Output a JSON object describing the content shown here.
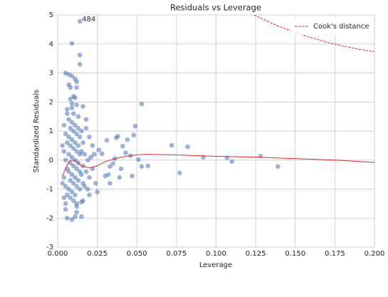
{
  "chart_data": {
    "type": "scatter",
    "title": "Residuals vs Leverage",
    "xlabel": "Leverage",
    "ylabel": "Standardized Residuals",
    "xlim": [
      0,
      0.2
    ],
    "ylim": [
      -3,
      5
    ],
    "xticks": [
      {
        "value": 0,
        "label": "0.000"
      },
      {
        "value": 0.025,
        "label": "0.025"
      },
      {
        "value": 0.05,
        "label": "0.050"
      },
      {
        "value": 0.075,
        "label": "0.075"
      },
      {
        "value": 0.1,
        "label": "0.100"
      },
      {
        "value": 0.125,
        "label": "0.125"
      },
      {
        "value": 0.15,
        "label": "0.150"
      },
      {
        "value": 0.175,
        "label": "0.175"
      },
      {
        "value": 0.2,
        "label": "0.200"
      }
    ],
    "yticks": [
      -3,
      -2,
      -1,
      0,
      1,
      2,
      3,
      4,
      5
    ],
    "grid": true,
    "legend": "upper right",
    "series": [
      {
        "kind": "scatter",
        "color": "#4c72b0",
        "x": [
          0.014,
          0.009,
          0.014,
          0.014,
          0.005,
          0.007,
          0.009,
          0.011,
          0.012,
          0.007,
          0.008,
          0.012,
          0.01,
          0.011,
          0.008,
          0.009,
          0.012,
          0.016,
          0.006,
          0.01,
          0.013,
          0.018,
          0.053,
          0.049,
          0.048,
          0.038,
          0.037,
          0.044,
          0.031,
          0.072,
          0.082,
          0.041,
          0.022,
          0.026,
          0.028,
          0.036,
          0.035,
          0.033,
          0.04,
          0.043,
          0.046,
          0.051,
          0.053,
          0.057,
          0.047,
          0.039,
          0.032,
          0.03,
          0.033,
          0.077,
          0.092,
          0.107,
          0.11,
          0.128,
          0.139,
          0.02,
          0.025,
          0.016,
          0.012,
          0.015,
          0.011,
          0.006,
          0.009,
          0.005,
          0.004,
          0.012,
          0.015,
          0.004,
          0.005,
          0.006,
          0.004,
          0.005,
          0.006,
          0.004,
          0.005,
          0.006,
          0.007,
          0.008,
          0.007,
          0.008,
          0.007,
          0.008,
          0.007,
          0.008,
          0.007,
          0.008,
          0.009,
          0.01,
          0.009,
          0.01,
          0.009,
          0.01,
          0.009,
          0.01,
          0.009,
          0.01,
          0.011,
          0.012,
          0.011,
          0.012,
          0.011,
          0.012,
          0.011,
          0.012,
          0.011,
          0.013,
          0.014,
          0.013,
          0.014,
          0.013,
          0.014,
          0.013,
          0.014,
          0.015,
          0.016,
          0.015,
          0.016,
          0.015,
          0.016,
          0.017,
          0.018,
          0.017,
          0.019,
          0.02,
          0.021,
          0.022,
          0.024,
          0.006,
          0.005,
          0.003,
          0.003,
          0.009,
          0.012,
          0.018,
          0.02,
          0.023,
          0.019
        ],
        "values": [
          4.78,
          4.02,
          3.62,
          3.3,
          3.0,
          2.95,
          2.9,
          2.8,
          2.7,
          2.6,
          2.5,
          2.5,
          2.2,
          2.15,
          2.1,
          1.95,
          1.9,
          1.85,
          1.75,
          1.6,
          1.5,
          1.4,
          1.93,
          1.17,
          0.86,
          0.82,
          0.77,
          0.7,
          0.68,
          0.51,
          0.46,
          0.48,
          0.5,
          0.35,
          0.22,
          0.05,
          -0.12,
          -0.22,
          -0.3,
          0.25,
          0.15,
          0.02,
          -0.22,
          -0.2,
          -0.55,
          -0.6,
          -0.5,
          -0.55,
          -0.8,
          -0.44,
          0.1,
          0.08,
          -0.05,
          0.14,
          -0.22,
          -1.2,
          -1.1,
          -1.4,
          -1.6,
          -1.95,
          -1.95,
          -2.0,
          -2.05,
          -1.5,
          -1.3,
          -1.8,
          -1.45,
          1.2,
          0.9,
          0.6,
          0.3,
          0.0,
          -0.3,
          -0.6,
          -0.9,
          -1.2,
          1.4,
          1.1,
          0.8,
          0.5,
          0.2,
          -0.1,
          -0.4,
          -0.7,
          -1.0,
          -1.3,
          1.3,
          1.0,
          0.7,
          0.4,
          0.1,
          -0.2,
          -0.5,
          -0.8,
          -1.1,
          -1.4,
          1.2,
          0.9,
          0.6,
          0.3,
          0.0,
          -0.3,
          -0.6,
          -0.9,
          -1.2,
          1.1,
          0.8,
          0.5,
          0.2,
          -0.1,
          -0.4,
          -0.7,
          -1.0,
          1.0,
          0.6,
          0.3,
          -0.2,
          -0.5,
          -0.8,
          0.2,
          -0.4,
          -0.9,
          0.0,
          -0.6,
          0.1,
          -0.3,
          -0.8,
          1.6,
          -1.7,
          -0.8,
          0.5,
          1.8,
          -1.5,
          1.1,
          0.8,
          0.2,
          -1.0
        ]
      },
      {
        "kind": "line",
        "color": "#e8262a",
        "x": [
          0.003,
          0.005,
          0.007,
          0.009,
          0.012,
          0.015,
          0.02,
          0.025,
          0.03,
          0.04,
          0.05,
          0.057,
          0.08,
          0.1,
          0.125,
          0.15,
          0.175,
          0.2
        ],
        "values": [
          -0.55,
          -0.3,
          -0.05,
          0.0,
          -0.05,
          -0.2,
          -0.27,
          -0.2,
          -0.05,
          0.1,
          0.18,
          0.2,
          0.17,
          0.13,
          0.1,
          0.05,
          0.0,
          -0.08
        ]
      },
      {
        "kind": "line",
        "name": "Cook's distance",
        "color": "#e8262a",
        "dashed": true,
        "x": [
          0.124,
          0.13,
          0.14,
          0.15,
          0.16,
          0.17,
          0.18,
          0.19,
          0.2
        ],
        "values": [
          5,
          4.84,
          4.6,
          4.4,
          4.22,
          4.06,
          3.93,
          3.82,
          3.73
        ]
      }
    ],
    "annotations": [
      {
        "text": "484",
        "x": 0.014,
        "y": 4.78
      }
    ]
  }
}
